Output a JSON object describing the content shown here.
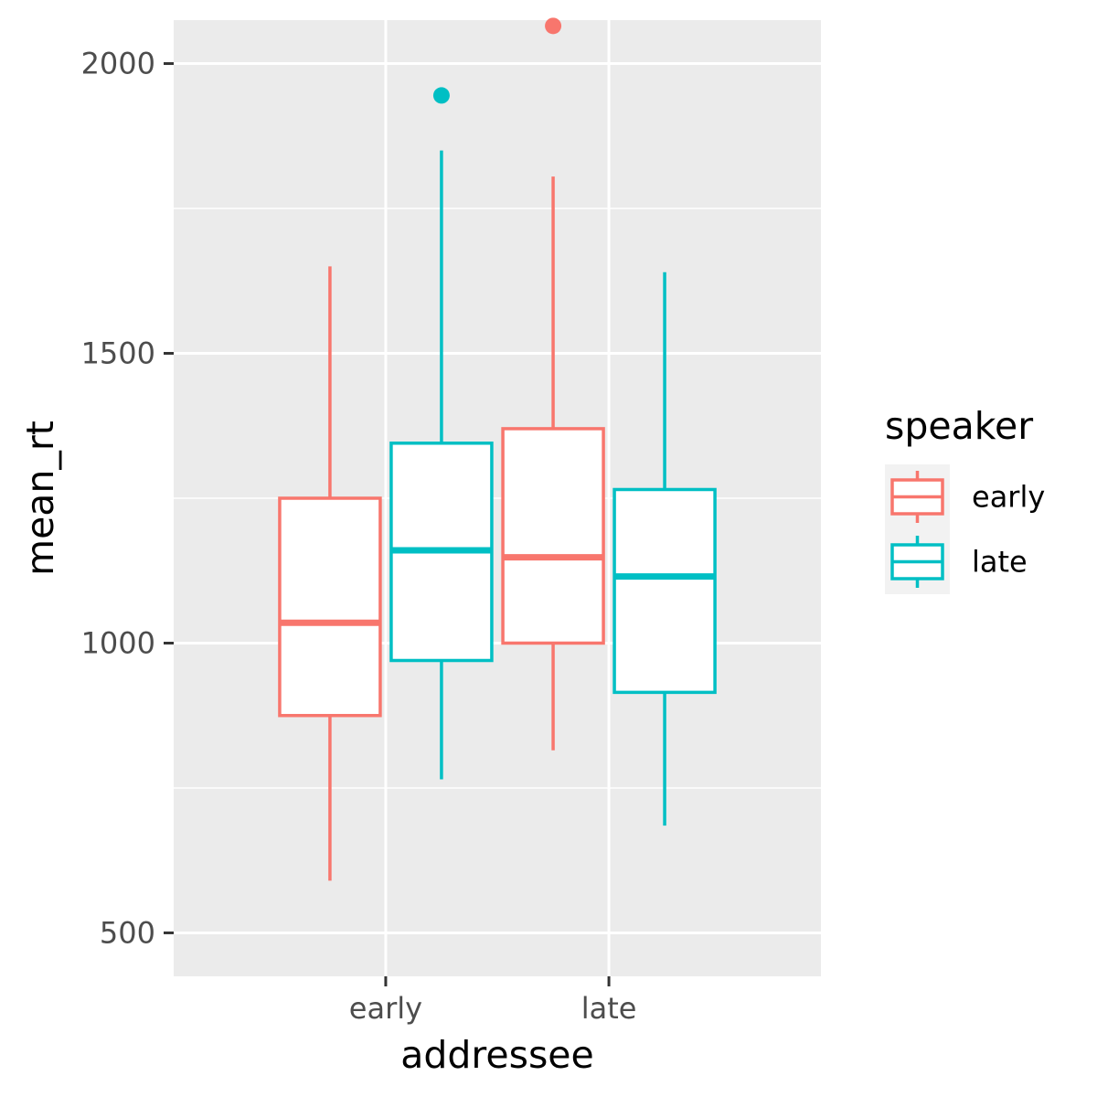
{
  "chart_data": {
    "type": "boxplot",
    "xlabel": "addressee",
    "ylabel": "mean_rt",
    "categories": [
      "early",
      "late"
    ],
    "ylim": [
      425,
      2075
    ],
    "yticks": [
      500,
      1000,
      1500,
      2000
    ],
    "grid": true,
    "legend": {
      "title": "speaker",
      "position": "right",
      "entries": [
        "early",
        "late"
      ]
    },
    "series": [
      {
        "name": "early",
        "color": "#F8766D",
        "boxes": [
          {
            "category": "early",
            "lower_whisker": 590,
            "q1": 875,
            "median": 1035,
            "q3": 1250,
            "upper_whisker": 1650,
            "outliers": []
          },
          {
            "category": "late",
            "lower_whisker": 815,
            "q1": 1000,
            "median": 1148,
            "q3": 1370,
            "upper_whisker": 1805,
            "outliers": [
              2065
            ]
          }
        ]
      },
      {
        "name": "late",
        "color": "#00BFC4",
        "boxes": [
          {
            "category": "early",
            "lower_whisker": 765,
            "q1": 970,
            "median": 1160,
            "q3": 1345,
            "upper_whisker": 1850,
            "outliers": [
              1945
            ]
          },
          {
            "category": "late",
            "lower_whisker": 685,
            "q1": 915,
            "median": 1115,
            "q3": 1265,
            "upper_whisker": 1640,
            "outliers": []
          }
        ]
      }
    ]
  }
}
